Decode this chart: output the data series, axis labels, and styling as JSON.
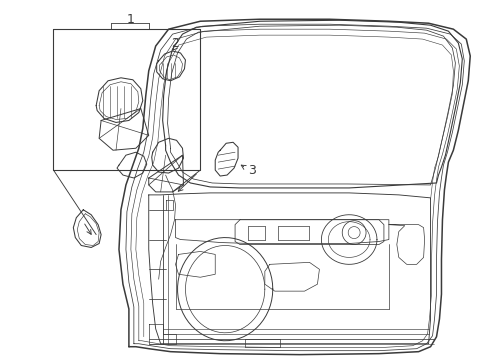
{
  "background_color": "#ffffff",
  "line_color": "#3a3a3a",
  "label1": "1",
  "label2": "2",
  "label3": "3",
  "figsize": [
    4.89,
    3.6
  ],
  "dpi": 100
}
